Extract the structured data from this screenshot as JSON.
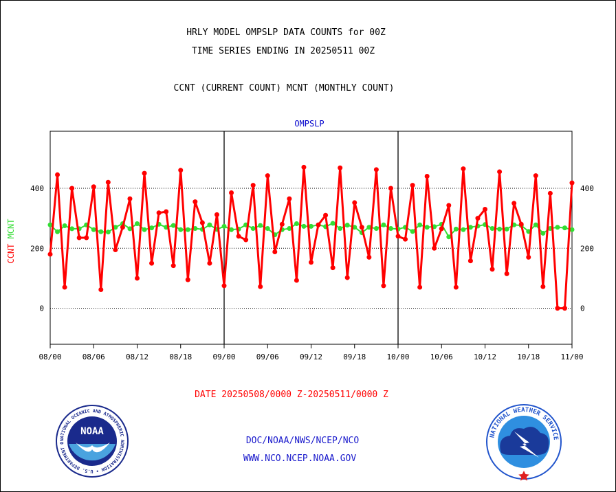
{
  "header": {
    "title_line1": "HRLY MODEL OMPSLP DATA COUNTS for 00Z",
    "title_line2": "TIME SERIES ENDING IN 20250511 00Z",
    "subtitle": "CCNT (CURRENT COUNT) MCNT (MONTHLY COUNT)"
  },
  "chart_data": {
    "type": "line",
    "title": "OMPSLP",
    "xlabel": "DATE 20250508/0000 Z-20250511/0000 Z",
    "ylabel_series": [
      "CCNT",
      "MCNT"
    ],
    "ylim": [
      -120,
      590
    ],
    "yticks": [
      "400",
      "200",
      "0"
    ],
    "ytick_values": [
      400,
      200,
      0
    ],
    "xlim": [
      0,
      72
    ],
    "xticks": [
      "08/00",
      "08/06",
      "08/12",
      "08/18",
      "09/00",
      "09/06",
      "09/12",
      "09/18",
      "10/00",
      "10/06",
      "10/12",
      "10/18",
      "11/00"
    ],
    "xtick_hours": [
      0,
      6,
      12,
      18,
      24,
      30,
      36,
      42,
      48,
      54,
      60,
      66,
      72
    ],
    "day_dividers": [
      24,
      48
    ],
    "gridlines_y": [
      400,
      200,
      0
    ],
    "series": [
      {
        "name": "CCNT",
        "color": "#ff0000",
        "x": [
          0,
          1,
          2,
          3,
          4,
          5,
          6,
          7,
          8,
          9,
          10,
          11,
          12,
          13,
          14,
          15,
          16,
          17,
          18,
          19,
          20,
          21,
          22,
          23,
          24,
          25,
          26,
          27,
          28,
          29,
          30,
          31,
          32,
          33,
          34,
          35,
          36,
          37,
          38,
          39,
          40,
          41,
          42,
          43,
          44,
          45,
          46,
          47,
          48,
          49,
          50,
          51,
          52,
          53,
          54,
          55,
          56,
          57,
          58,
          59,
          60,
          61,
          62,
          63,
          64,
          65,
          66,
          67,
          68,
          69,
          70,
          71,
          72
        ],
        "values": [
          180,
          445,
          70,
          400,
          235,
          235,
          405,
          62,
          420,
          195,
          270,
          365,
          100,
          450,
          150,
          318,
          322,
          142,
          460,
          95,
          355,
          285,
          150,
          312,
          75,
          385,
          240,
          228,
          410,
          72,
          442,
          188,
          280,
          365,
          93,
          470,
          153,
          278,
          310,
          135,
          468,
          102,
          352,
          270,
          170,
          462,
          75,
          400,
          240,
          230,
          410,
          70,
          440,
          200,
          265,
          343,
          70,
          465,
          158,
          300,
          330,
          130,
          455,
          115,
          350,
          280,
          170,
          442,
          72,
          383,
          0,
          0,
          418
        ]
      },
      {
        "name": "MCNT",
        "color": "#33dd33",
        "x": [
          0,
          1,
          2,
          3,
          4,
          5,
          6,
          7,
          8,
          9,
          10,
          11,
          12,
          13,
          14,
          15,
          16,
          17,
          18,
          19,
          20,
          21,
          22,
          23,
          24,
          25,
          26,
          27,
          28,
          29,
          30,
          31,
          32,
          33,
          34,
          35,
          36,
          37,
          38,
          39,
          40,
          41,
          42,
          43,
          44,
          45,
          46,
          47,
          48,
          49,
          50,
          51,
          52,
          53,
          54,
          55,
          56,
          57,
          58,
          59,
          60,
          61,
          62,
          63,
          64,
          65,
          66,
          67,
          68,
          69,
          70,
          71,
          72
        ],
        "values": [
          278,
          255,
          275,
          265,
          265,
          278,
          262,
          255,
          254,
          270,
          282,
          265,
          282,
          262,
          268,
          280,
          270,
          276,
          262,
          262,
          266,
          263,
          278,
          263,
          273,
          262,
          264,
          278,
          266,
          276,
          266,
          245,
          262,
          266,
          282,
          273,
          273,
          278,
          272,
          283,
          266,
          277,
          270,
          252,
          270,
          266,
          278,
          266,
          264,
          270,
          256,
          278,
          270,
          272,
          280,
          238,
          264,
          262,
          270,
          274,
          279,
          266,
          264,
          264,
          278,
          276,
          256,
          278,
          250,
          266,
          270,
          268,
          262
        ]
      }
    ]
  },
  "footer": {
    "line1": "DOC/NOAA/NWS/NCEP/NCO",
    "line2": "WWW.NCO.NCEP.NOAA.GOV"
  },
  "logos": {
    "noaa": {
      "text": "NOAA",
      "ring_text": "NATIONAL OCEANIC AND ATMOSPHERIC ADMINISTRATION • U.S. DEPARTMENT OF COMMERCE •",
      "colors": {
        "navy": "#1a2a8c",
        "sky": "#4aa3df"
      }
    },
    "nws": {
      "ring_text": "NATIONAL WEATHER SERVICE",
      "colors": {
        "blue": "#2255cc",
        "sky": "#2f8fe0",
        "star": "#e02020"
      }
    }
  },
  "colors": {
    "title_text": "#000000",
    "axis_title": "#0000cc",
    "date_label": "#ff0000",
    "footer_text": "#1a1acc",
    "ccnt": "#ff0000",
    "mcnt": "#33dd33"
  }
}
